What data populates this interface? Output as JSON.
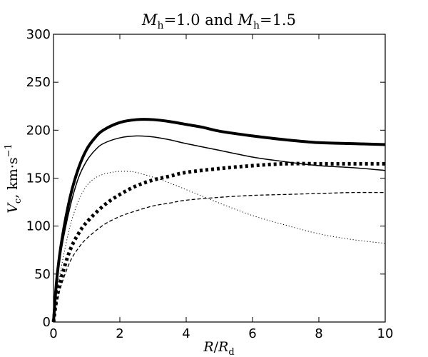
{
  "chart_data": {
    "type": "line",
    "title": {
      "m1": "M",
      "m1_sub": "h",
      "eq1": "=1.0 and ",
      "m2": "M",
      "m2_sub": "h",
      "eq2": "=1.5"
    },
    "xlabel": {
      "r": "R",
      "slash": "/",
      "rd": "R",
      "rd_sub": "d"
    },
    "ylabel": {
      "v": "V",
      "v_sub": "c",
      "rest": ", km·s",
      "exp": "−1"
    },
    "xlim": [
      0,
      10
    ],
    "ylim": [
      0,
      300
    ],
    "x_ticks": [
      "0",
      "2",
      "4",
      "6",
      "8",
      "10"
    ],
    "y_ticks": [
      "0",
      "50",
      "100",
      "150",
      "200",
      "250",
      "300"
    ],
    "grid": false,
    "legend": "none",
    "series": [
      {
        "style": "thick-solid",
        "x": [
          0,
          0.1,
          0.25,
          0.5,
          0.75,
          1.0,
          1.25,
          1.5,
          2.0,
          2.5,
          3.0,
          3.5,
          4.0,
          4.5,
          5.0,
          6.0,
          7.0,
          8.0,
          9.0,
          10.0
        ],
        "y": [
          0,
          45,
          85,
          130,
          160,
          180,
          192,
          200,
          208,
          211,
          211,
          209,
          206,
          203,
          199,
          194,
          190,
          187,
          186,
          185
        ]
      },
      {
        "style": "thin-solid",
        "x": [
          0,
          0.1,
          0.25,
          0.5,
          0.75,
          1.0,
          1.25,
          1.5,
          2.0,
          2.5,
          3.0,
          3.5,
          4.0,
          5.0,
          6.0,
          7.0,
          8.0,
          9.0,
          10.0
        ],
        "y": [
          0,
          40,
          78,
          120,
          150,
          168,
          179,
          186,
          192,
          194,
          193,
          190,
          186,
          179,
          172,
          167,
          163,
          161,
          158
        ]
      },
      {
        "style": "thick-dotted",
        "x": [
          0,
          0.1,
          0.25,
          0.5,
          0.75,
          1.0,
          1.5,
          2.0,
          2.5,
          3.0,
          3.5,
          4.0,
          5.0,
          6.0,
          7.0,
          8.0,
          9.0,
          10.0
        ],
        "y": [
          0,
          25,
          48,
          75,
          92,
          104,
          121,
          133,
          142,
          148,
          152,
          156,
          160,
          163,
          165,
          165,
          165,
          165
        ]
      },
      {
        "style": "thin-dotted",
        "x": [
          0,
          0.1,
          0.25,
          0.5,
          0.75,
          1.0,
          1.25,
          1.5,
          1.75,
          2.0,
          2.25,
          2.5,
          3.0,
          3.5,
          4.0,
          4.5,
          5.0,
          6.0,
          7.0,
          8.0,
          9.0,
          10.0
        ],
        "y": [
          0,
          30,
          60,
          100,
          126,
          142,
          150,
          154,
          156,
          157,
          157,
          156,
          151,
          145,
          138,
          131,
          124,
          111,
          101,
          92,
          86,
          82
        ]
      },
      {
        "style": "thin-dashed",
        "x": [
          0,
          0.1,
          0.25,
          0.5,
          0.75,
          1.0,
          1.5,
          2.0,
          2.5,
          3.0,
          3.5,
          4.0,
          5.0,
          6.0,
          7.0,
          8.0,
          9.0,
          10.0
        ],
        "y": [
          0,
          20,
          40,
          63,
          77,
          87,
          101,
          110,
          116,
          121,
          124,
          127,
          130,
          132,
          133,
          134,
          135,
          135
        ]
      }
    ]
  }
}
